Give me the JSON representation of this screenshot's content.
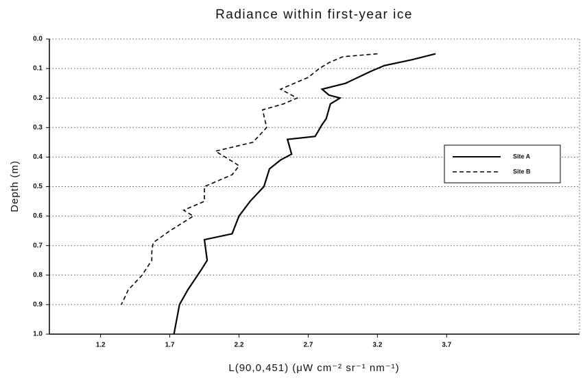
{
  "chart_data": {
    "type": "line",
    "title": "Radiance within first-year ice",
    "xlabel": "L(90,0,451) (μW cm⁻² sr⁻¹ nm⁻¹)",
    "ylabel": "Depth (m)",
    "xlim": [
      0.83,
      4.66
    ],
    "ylim": [
      0,
      1
    ],
    "y_inverted": true,
    "xticks": [
      1.2,
      1.7,
      2.2,
      2.7,
      3.2,
      3.7
    ],
    "yticks": [
      {
        "value": 0,
        "label": "0.0"
      },
      0.1,
      0.2,
      0.3,
      0.4,
      0.5,
      0.6,
      0.7,
      0.8,
      0.9,
      {
        "value": 1,
        "label": "1.0"
      }
    ],
    "grid": true,
    "legend": "right",
    "series": [
      {
        "name": "Site A",
        "color": "#000000",
        "dash": "solid",
        "x": [
          3.62,
          3.45,
          3.25,
          3.15,
          2.97,
          2.8,
          2.85,
          2.93,
          2.86,
          2.83,
          2.8,
          2.75,
          2.55,
          2.58,
          2.5,
          2.42,
          2.38,
          2.28,
          2.2,
          2.15,
          1.95,
          1.97,
          1.93,
          1.83,
          1.77,
          1.73
        ],
        "y": [
          0.05,
          0.07,
          0.09,
          0.11,
          0.15,
          0.17,
          0.19,
          0.2,
          0.22,
          0.27,
          0.29,
          0.33,
          0.34,
          0.39,
          0.41,
          0.44,
          0.5,
          0.55,
          0.6,
          0.66,
          0.68,
          0.75,
          0.78,
          0.85,
          0.9,
          1.0
        ]
      },
      {
        "name": "Site B",
        "color": "#000000",
        "dash": "dashed",
        "x": [
          3.2,
          2.95,
          2.85,
          2.78,
          2.7,
          2.6,
          2.5,
          2.62,
          2.52,
          2.37,
          2.4,
          2.3,
          2.03,
          2.17,
          2.2,
          2.15,
          1.95,
          1.95,
          1.8,
          1.87,
          1.7,
          1.58,
          1.57,
          1.57,
          1.5,
          1.4,
          1.35
        ],
        "y": [
          0.05,
          0.06,
          0.08,
          0.1,
          0.13,
          0.15,
          0.17,
          0.2,
          0.22,
          0.24,
          0.3,
          0.35,
          0.38,
          0.42,
          0.43,
          0.46,
          0.5,
          0.55,
          0.58,
          0.6,
          0.65,
          0.69,
          0.72,
          0.75,
          0.8,
          0.85,
          0.9
        ]
      }
    ]
  }
}
